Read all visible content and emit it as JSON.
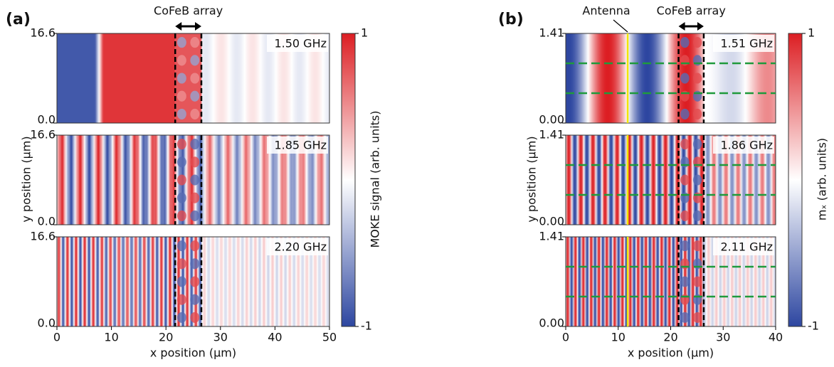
{
  "chart_data": [
    {
      "type": "heatmap",
      "panel_label": "(a)",
      "array_label": "CoFeB array",
      "x_label": "x position (µm)",
      "y_label": "y position (µm)",
      "xlim": [
        0,
        50
      ],
      "xticks": [
        0,
        10,
        20,
        30,
        40,
        50
      ],
      "ylim": [
        0,
        16.6
      ],
      "yticks": [
        {
          "value": 0,
          "label": "0.0"
        },
        16.6
      ],
      "array_x": [
        21.7,
        26.5
      ],
      "panels": [
        "1.50 GHz",
        "1.85 GHz",
        "2.20 GHz"
      ],
      "colorbar": {
        "label": "MOKE signal (arb. units)",
        "zlim": [
          -1,
          1
        ],
        "ticks": [
          -1,
          1
        ]
      }
    },
    {
      "type": "heatmap",
      "panel_label": "(b)",
      "array_label": "CoFeB array",
      "annotation": "Antenna",
      "x_label": "x position (µm)",
      "y_label": "y position (µm)",
      "xlim": [
        0,
        40
      ],
      "xticks": [
        0,
        10,
        20,
        30,
        40
      ],
      "ylim": [
        0,
        1.41
      ],
      "yticks": [
        {
          "value": 0,
          "label": "0.00"
        },
        1.41
      ],
      "array_x": [
        21.5,
        26.3
      ],
      "antenna_x": 11.8,
      "antenna_color": "#f2e600",
      "guide_y": [
        0.47,
        0.94
      ],
      "guide_color": "#1f9a3c",
      "panels": [
        "1.51 GHz",
        "1.86 GHz",
        "2.11 GHz"
      ],
      "colorbar": {
        "label": "mₓ (arb. units)",
        "zlim": [
          -1,
          1
        ],
        "ticks": [
          -1,
          1
        ]
      }
    }
  ]
}
